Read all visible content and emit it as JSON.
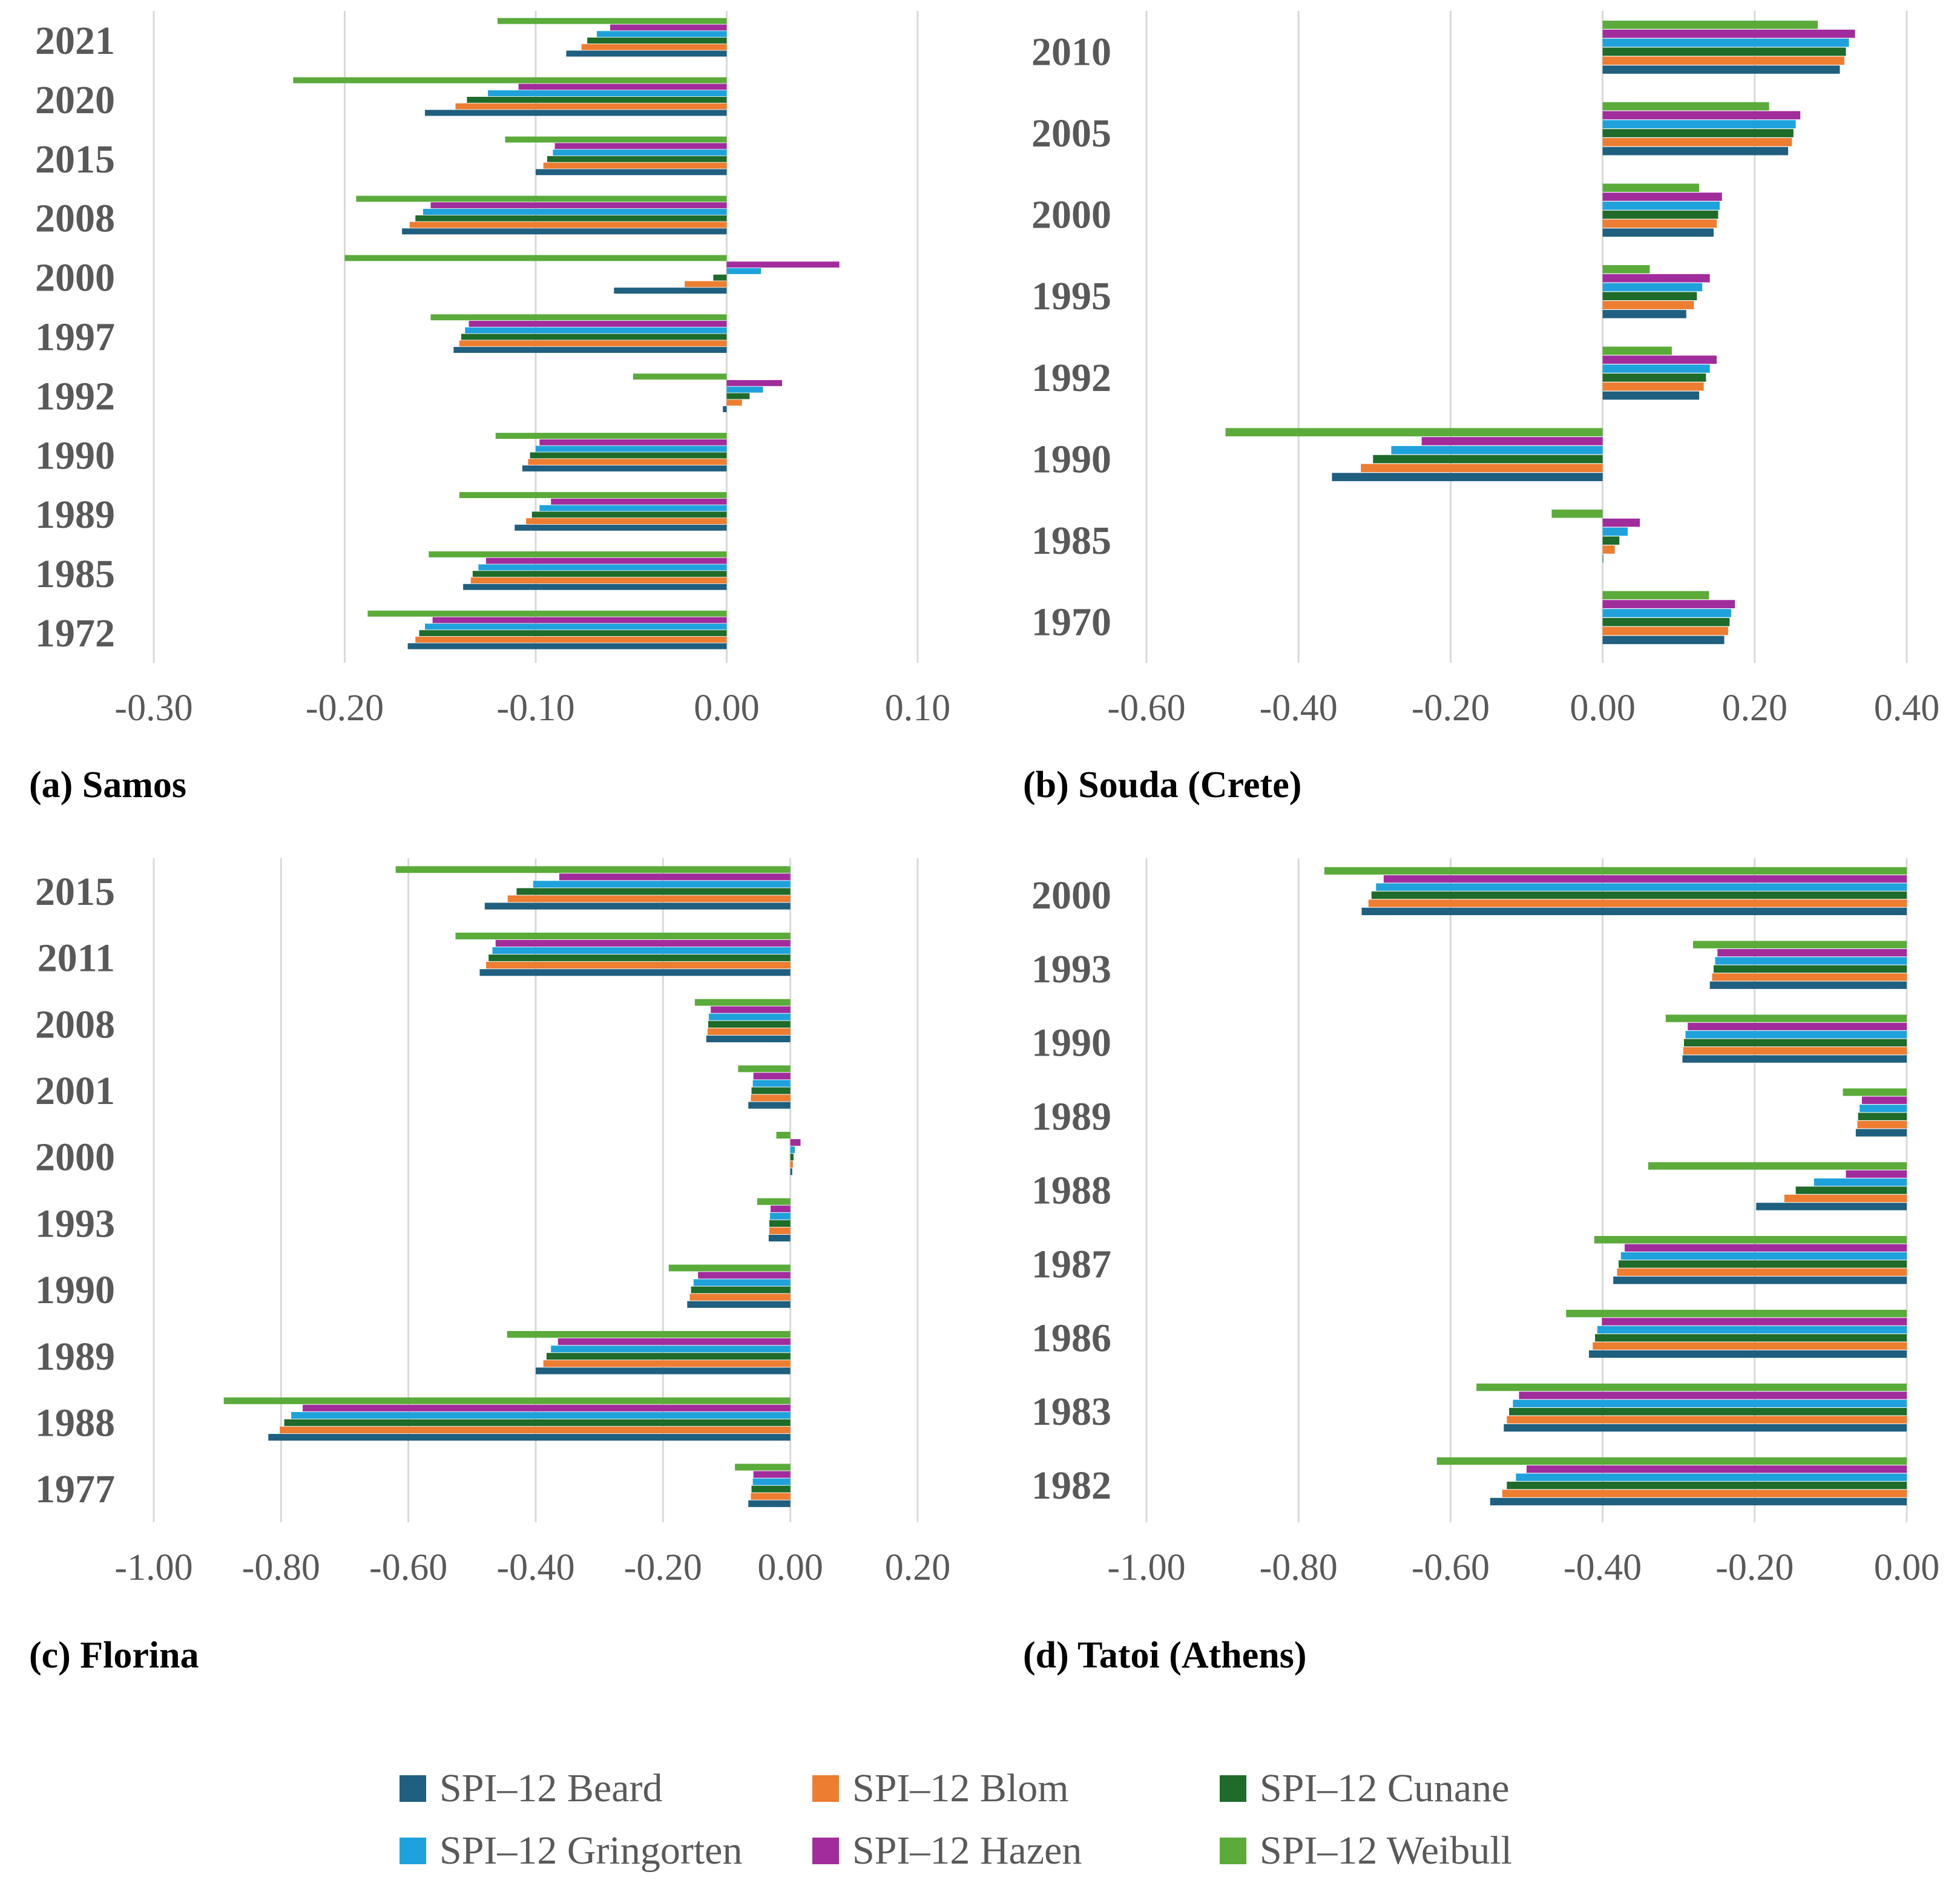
{
  "legend": {
    "items": [
      {
        "label": "SPI–12 Beard",
        "color": "#1f5f7f"
      },
      {
        "label": "SPI–12 Blom",
        "color": "#ed7d31"
      },
      {
        "label": "SPI–12 Cunane",
        "color": "#1e6b2a"
      },
      {
        "label": "SPI–12 Gringorten",
        "color": "#1fa2dc"
      },
      {
        "label": "SPI–12 Hazen",
        "color": "#a12c9c"
      },
      {
        "label": "SPI–12 Weibull",
        "color": "#5aab3a"
      }
    ]
  },
  "chart_data": [
    {
      "type": "bar",
      "caption": "(a) Samos",
      "categories": [
        "2021",
        "2020",
        "2015",
        "2008",
        "2000",
        "1997",
        "1992",
        "1990",
        "1989",
        "1985",
        "1972"
      ],
      "xlim": [
        -0.3,
        0.1
      ],
      "xticks": [
        "-0.30",
        "-0.20",
        "-0.10",
        "0.00",
        "0.10"
      ],
      "grid": true,
      "series": [
        {
          "name": "SPI–12 Beard",
          "values": [
            -0.084,
            -0.158,
            -0.1,
            -0.17,
            -0.059,
            -0.143,
            -0.002,
            -0.107,
            -0.111,
            -0.138,
            -0.167
          ]
        },
        {
          "name": "SPI–12 Blom",
          "values": [
            -0.076,
            -0.142,
            -0.096,
            -0.166,
            -0.022,
            -0.14,
            0.008,
            -0.104,
            -0.105,
            -0.134,
            -0.163
          ]
        },
        {
          "name": "SPI–12 Cunane",
          "values": [
            -0.073,
            -0.136,
            -0.094,
            -0.163,
            -0.007,
            -0.139,
            0.012,
            -0.103,
            -0.102,
            -0.133,
            -0.161
          ]
        },
        {
          "name": "SPI–12 Gringorten",
          "values": [
            -0.068,
            -0.125,
            -0.091,
            -0.159,
            0.018,
            -0.137,
            0.019,
            -0.1,
            -0.098,
            -0.13,
            -0.158
          ]
        },
        {
          "name": "SPI–12 Hazen",
          "values": [
            -0.061,
            -0.109,
            -0.09,
            -0.155,
            0.059,
            -0.135,
            0.029,
            -0.098,
            -0.092,
            -0.126,
            -0.154
          ]
        },
        {
          "name": "SPI–12 Weibull",
          "values": [
            -0.12,
            -0.227,
            -0.116,
            -0.194,
            -0.2,
            -0.155,
            -0.049,
            -0.121,
            -0.14,
            -0.156,
            -0.188
          ]
        }
      ]
    },
    {
      "type": "bar",
      "caption": "(b) Souda (Crete)",
      "categories": [
        "2010",
        "2005",
        "2000",
        "1995",
        "1992",
        "1990",
        "1985",
        "1970"
      ],
      "xlim": [
        -0.6,
        0.4
      ],
      "xticks": [
        "-0.60",
        "-0.40",
        "-0.20",
        "0.00",
        "0.20",
        "0.40"
      ],
      "grid": true,
      "series": [
        {
          "name": "SPI–12 Beard",
          "values": [
            0.312,
            0.244,
            0.146,
            0.11,
            0.127,
            -0.356,
            0.0,
            0.16
          ]
        },
        {
          "name": "SPI–12 Blom",
          "values": [
            0.318,
            0.249,
            0.15,
            0.12,
            0.133,
            -0.318,
            0.016,
            0.165
          ]
        },
        {
          "name": "SPI–12 Cunane",
          "values": [
            0.32,
            0.251,
            0.152,
            0.124,
            0.136,
            -0.302,
            0.022,
            0.167
          ]
        },
        {
          "name": "SPI–12 Gringorten",
          "values": [
            0.324,
            0.254,
            0.154,
            0.131,
            0.141,
            -0.278,
            0.033,
            0.169
          ]
        },
        {
          "name": "SPI–12 Hazen",
          "values": [
            0.332,
            0.26,
            0.157,
            0.141,
            0.15,
            -0.238,
            0.049,
            0.174
          ]
        },
        {
          "name": "SPI–12 Weibull",
          "values": [
            0.283,
            0.219,
            0.127,
            0.062,
            0.091,
            -0.496,
            -0.067,
            0.14
          ]
        }
      ]
    },
    {
      "type": "bar",
      "caption": "(c) Florina",
      "categories": [
        "2015",
        "2011",
        "2008",
        "2001",
        "2000",
        "1993",
        "1990",
        "1989",
        "1988",
        "1977"
      ],
      "xlim": [
        -1.0,
        0.2
      ],
      "xticks": [
        "-1.00",
        "-0.80",
        "-0.60",
        "-0.40",
        "-0.20",
        "0.00",
        "0.20"
      ],
      "grid": true,
      "series": [
        {
          "name": "SPI–12 Beard",
          "values": [
            -0.48,
            -0.488,
            -0.132,
            -0.066,
            0.003,
            -0.034,
            -0.162,
            -0.4,
            -0.82,
            -0.066
          ]
        },
        {
          "name": "SPI–12 Blom",
          "values": [
            -0.444,
            -0.478,
            -0.13,
            -0.062,
            0.004,
            -0.033,
            -0.158,
            -0.388,
            -0.802,
            -0.062
          ]
        },
        {
          "name": "SPI–12 Cunane",
          "values": [
            -0.43,
            -0.474,
            -0.129,
            -0.061,
            0.005,
            -0.033,
            -0.156,
            -0.383,
            -0.795,
            -0.061
          ]
        },
        {
          "name": "SPI–12 Gringorten",
          "values": [
            -0.404,
            -0.468,
            -0.128,
            -0.059,
            0.007,
            -0.032,
            -0.152,
            -0.376,
            -0.784,
            -0.059
          ]
        },
        {
          "name": "SPI–12 Hazen",
          "values": [
            -0.363,
            -0.463,
            -0.125,
            -0.058,
            0.016,
            -0.031,
            -0.145,
            -0.365,
            -0.766,
            -0.058
          ]
        },
        {
          "name": "SPI–12 Weibull",
          "values": [
            -0.62,
            -0.526,
            -0.15,
            -0.082,
            -0.022,
            -0.052,
            -0.191,
            -0.445,
            -0.89,
            -0.087
          ]
        }
      ]
    },
    {
      "type": "bar",
      "caption": "(d) Tatoi (Athens)",
      "categories": [
        "2000",
        "1993",
        "1990",
        "1989",
        "1988",
        "1987",
        "1986",
        "1983",
        "1982"
      ],
      "xlim": [
        -1.0,
        0.0
      ],
      "xticks": [
        "-1.00",
        "-0.80",
        "-0.60",
        "-0.40",
        "-0.20",
        "0.00"
      ],
      "grid": true,
      "series": [
        {
          "name": "SPI–12 Beard",
          "values": [
            -0.717,
            -0.259,
            -0.295,
            -0.067,
            -0.198,
            -0.386,
            -0.418,
            -0.53,
            -0.548
          ]
        },
        {
          "name": "SPI–12 Blom",
          "values": [
            -0.708,
            -0.256,
            -0.294,
            -0.065,
            -0.161,
            -0.381,
            -0.413,
            -0.526,
            -0.532
          ]
        },
        {
          "name": "SPI–12 Cunane",
          "values": [
            -0.704,
            -0.254,
            -0.293,
            -0.064,
            -0.146,
            -0.379,
            -0.41,
            -0.523,
            -0.526
          ]
        },
        {
          "name": "SPI–12 Gringorten",
          "values": [
            -0.698,
            -0.252,
            -0.291,
            -0.062,
            -0.122,
            -0.376,
            -0.407,
            -0.518,
            -0.514
          ]
        },
        {
          "name": "SPI–12 Hazen",
          "values": [
            -0.688,
            -0.249,
            -0.288,
            -0.059,
            -0.08,
            -0.371,
            -0.401,
            -0.51,
            -0.5
          ]
        },
        {
          "name": "SPI–12 Weibull",
          "values": [
            -0.766,
            -0.281,
            -0.317,
            -0.084,
            -0.34,
            -0.411,
            -0.448,
            -0.566,
            -0.618
          ]
        }
      ]
    }
  ]
}
